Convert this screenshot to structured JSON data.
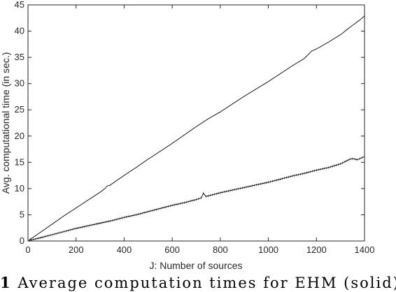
{
  "chart_data": {
    "type": "line",
    "title": "",
    "xlabel": "J: Number of sources",
    "ylabel": "Avg. computational time (in sec.)",
    "xlim": [
      0,
      1400
    ],
    "ylim": [
      0,
      45
    ],
    "xticks": [
      0,
      200,
      400,
      600,
      800,
      1000,
      1200,
      1400
    ],
    "yticks": [
      0,
      5,
      10,
      15,
      20,
      25,
      30,
      35,
      40,
      45
    ],
    "grid": false,
    "legend": "none",
    "series": [
      {
        "style": "solid",
        "color": "#000000",
        "x": [
          5,
          50,
          100,
          150,
          200,
          250,
          300,
          320,
          330,
          340,
          400,
          450,
          500,
          550,
          600,
          650,
          700,
          750,
          800,
          850,
          900,
          950,
          1000,
          1050,
          1100,
          1150,
          1180,
          1200,
          1250,
          1300,
          1330,
          1350,
          1380,
          1400
        ],
        "y": [
          0.2,
          1.6,
          3.2,
          4.8,
          6.3,
          7.8,
          9.3,
          10.0,
          10.5,
          10.6,
          12.5,
          14.0,
          15.6,
          17.1,
          18.6,
          20.2,
          21.8,
          23.3,
          24.6,
          26.1,
          27.6,
          29.0,
          30.4,
          31.9,
          33.4,
          34.8,
          36.2,
          36.6,
          37.9,
          39.3,
          40.4,
          41.1,
          42.1,
          42.9
        ]
      },
      {
        "style": "dotted-solid",
        "color": "#000000",
        "x": [
          5,
          50,
          100,
          150,
          200,
          250,
          300,
          350,
          400,
          450,
          500,
          550,
          600,
          650,
          700,
          720,
          730,
          740,
          750,
          800,
          850,
          900,
          950,
          1000,
          1050,
          1100,
          1150,
          1200,
          1250,
          1300,
          1340,
          1350,
          1370,
          1400
        ],
        "y": [
          0.1,
          0.6,
          1.2,
          1.8,
          2.4,
          2.9,
          3.4,
          3.9,
          4.5,
          5.0,
          5.6,
          6.2,
          6.8,
          7.3,
          7.9,
          8.2,
          9.1,
          8.5,
          8.6,
          9.2,
          9.7,
          10.2,
          10.7,
          11.2,
          11.8,
          12.4,
          12.9,
          13.5,
          14.0,
          14.7,
          15.6,
          15.7,
          15.5,
          16.1
        ]
      }
    ]
  },
  "caption": {
    "number": "1",
    "text": "Average computation times for EHM (solid) a"
  }
}
